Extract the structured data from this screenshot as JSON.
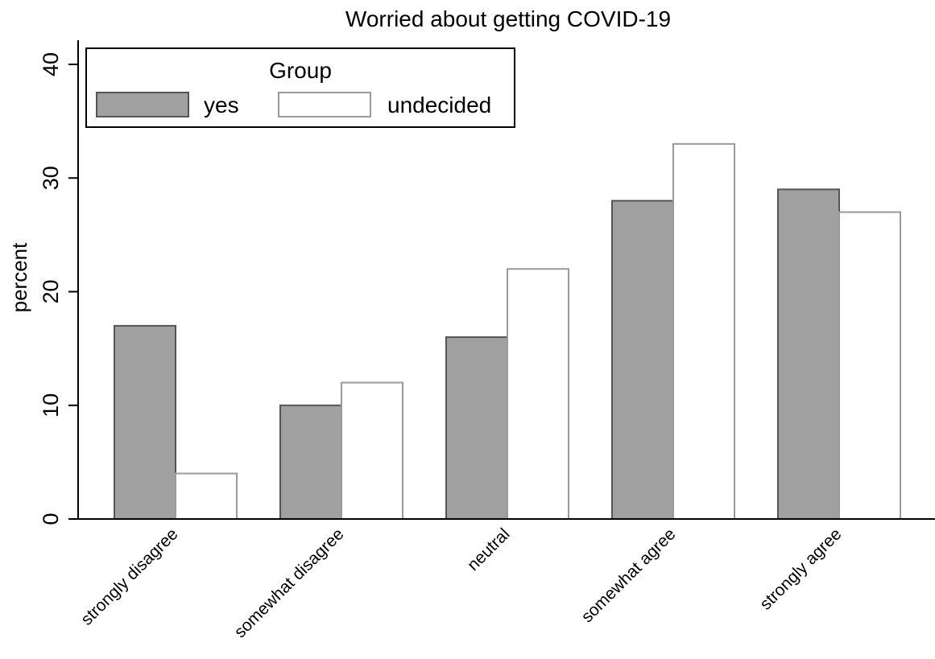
{
  "chart_data": {
    "type": "bar",
    "title": "Worried about getting COVID-19",
    "xlabel": "",
    "ylabel": "percent",
    "categories": [
      "strongly disagree",
      "somewhat disagree",
      "neutral",
      "somewhat agree",
      "strongly agree"
    ],
    "series": [
      {
        "name": "yes",
        "values": [
          17,
          10,
          16,
          28,
          29
        ],
        "color": "#a0a0a0",
        "stroke": "#555555"
      },
      {
        "name": "undecided",
        "values": [
          4,
          12,
          22,
          33,
          27
        ],
        "color": "#ffffff",
        "stroke": "#9a9a9a"
      }
    ],
    "ylim": [
      0,
      40
    ],
    "yticks": [
      0,
      10,
      20,
      30,
      40
    ],
    "grid": false,
    "legend": {
      "title": "Group",
      "placement": "top-left"
    }
  }
}
